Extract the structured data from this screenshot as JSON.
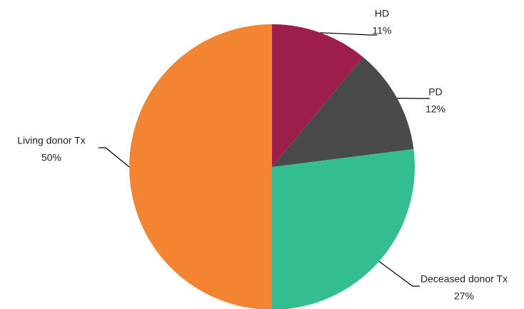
{
  "chart_data": {
    "type": "pie",
    "categories": [
      "HD",
      "PD",
      "Deceased donor Tx",
      "Living donor Tx"
    ],
    "values": [
      11,
      12,
      27,
      50
    ],
    "value_labels": [
      "11%",
      "12%",
      "27%",
      "50%"
    ],
    "colors": [
      "#9e1f4e",
      "#494b4b",
      "#33bd91",
      "#f28432"
    ]
  }
}
